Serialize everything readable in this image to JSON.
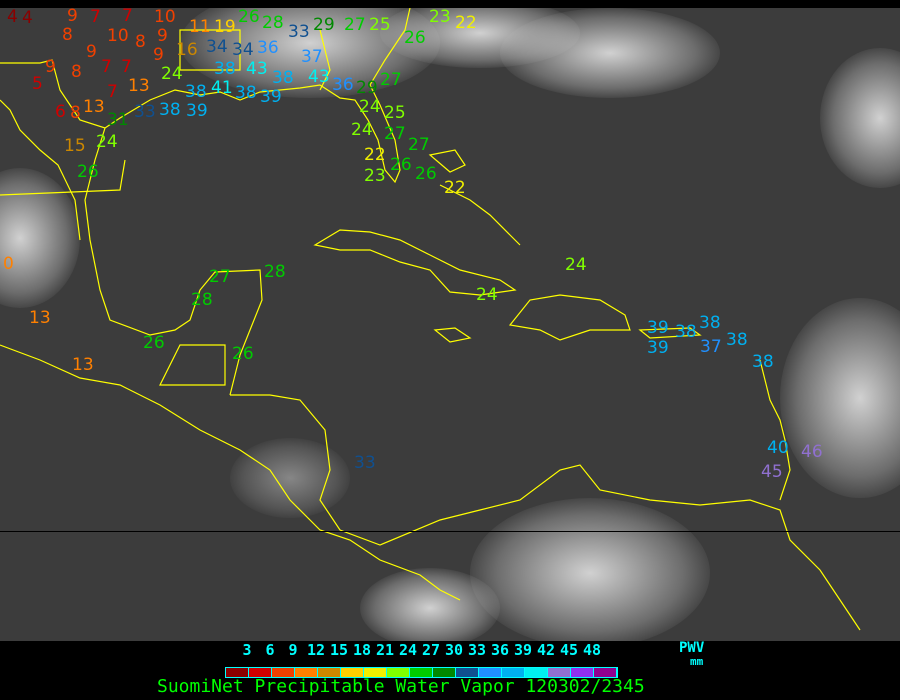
{
  "caption": "SuomiNet Precipitable Water Vapor 120302/2345",
  "legend": {
    "unit_label": "PWV",
    "unit_sub": "mm",
    "ticks": [
      "3",
      "6",
      "9",
      "12",
      "15",
      "18",
      "21",
      "24",
      "27",
      "30",
      "33",
      "36",
      "39",
      "42",
      "45",
      "48"
    ],
    "colors": [
      "#8b0000",
      "#d00000",
      "#f04000",
      "#ff8000",
      "#cc8800",
      "#ffd000",
      "#f0f000",
      "#80ff00",
      "#00cc00",
      "#008800",
      "#105090",
      "#2090ff",
      "#00b0f0",
      "#00f0f0",
      "#9070d0",
      "#9030f0",
      "#900090"
    ]
  },
  "coastline_color": "#ffff00",
  "stations": [
    "4",
    "4",
    "9",
    "7",
    "7",
    "10",
    "10",
    "9",
    "8",
    "9",
    "8",
    "9",
    "8",
    "7",
    "7",
    "9",
    "5",
    "13",
    "7",
    "6",
    "8",
    "13",
    "15",
    "24",
    "26",
    "31",
    "33",
    "38",
    "11",
    "19",
    "26",
    "28",
    "16",
    "34",
    "34",
    "36",
    "33",
    "29",
    "38",
    "43",
    "37",
    "43",
    "24",
    "38",
    "39",
    "41",
    "38",
    "39",
    "38",
    "36",
    "29",
    "24",
    "25",
    "27",
    "25",
    "26",
    "23",
    "22",
    "27",
    "24",
    "27",
    "27",
    "22",
    "23",
    "26",
    "26",
    "22",
    "24",
    "24",
    "27",
    "28",
    "28",
    "26",
    "26",
    "0",
    "13",
    "13",
    "33",
    "39",
    "39",
    "38",
    "38",
    "37",
    "38",
    "38",
    "40",
    "46",
    "45"
  ]
}
